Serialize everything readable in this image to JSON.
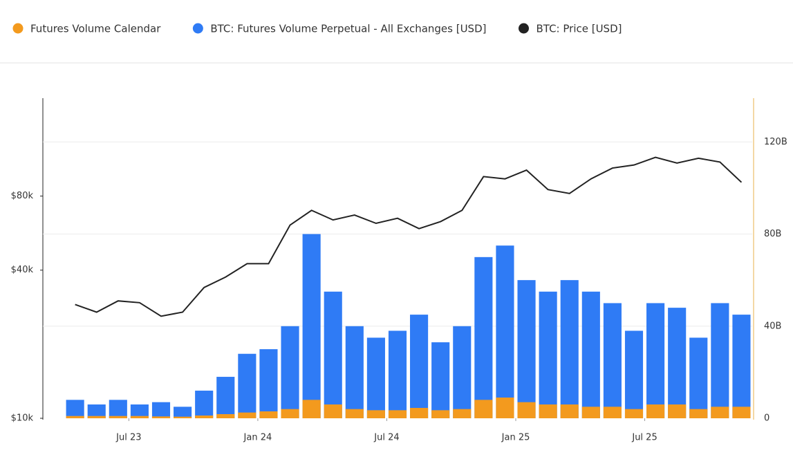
{
  "chart_data": {
    "type": "bar-line",
    "x": [
      "2023-04",
      "2023-05",
      "2023-06",
      "2023-07",
      "2023-08",
      "2023-09",
      "2023-10",
      "2023-11",
      "2023-12",
      "2024-01",
      "2024-02",
      "2024-03",
      "2024-04",
      "2024-05",
      "2024-06",
      "2024-07",
      "2024-08",
      "2024-09",
      "2024-10",
      "2024-11",
      "2024-12",
      "2025-01",
      "2025-02",
      "2025-03",
      "2025-04",
      "2025-05",
      "2025-06",
      "2025-07",
      "2025-08",
      "2025-09",
      "2025-10",
      "2025-11"
    ],
    "xlim": [
      "2023-03",
      "2025-12"
    ],
    "xticks": [
      {
        "value": "2023-07",
        "label": "Jul 23"
      },
      {
        "value": "2024-01",
        "label": "Jan 24"
      },
      {
        "value": "2024-07",
        "label": "Jul 24"
      },
      {
        "value": "2025-01",
        "label": "Jan 25"
      },
      {
        "value": "2025-07",
        "label": "Jul 25"
      }
    ],
    "ylim": [
      10000,
      200000
    ],
    "log_y": true,
    "yticks": [
      {
        "value": 10000,
        "label": "$10k"
      },
      {
        "value": 40000,
        "label": "$40k"
      },
      {
        "value": 80000,
        "label": "$80k"
      }
    ],
    "y2lim": [
      0,
      139000000000
    ],
    "y2ticks": [
      0,
      {
        "value": 40000000000,
        "label": "40B"
      },
      {
        "value": 80000000000,
        "label": "80B"
      },
      {
        "value": 120000000000,
        "label": "120B"
      }
    ],
    "grid": true,
    "series": [
      {
        "name": "Futures Volume Calendar",
        "color": "#f39a1e",
        "axis": "y2",
        "kind": "bar",
        "values": [
          1000000000,
          1000000000,
          1000000000,
          1000000000,
          800000000,
          700000000,
          1200000000,
          1800000000,
          2500000000,
          3000000000,
          4000000000,
          8000000000,
          6000000000,
          4000000000,
          3500000000,
          3500000000,
          4500000000,
          3500000000,
          4000000000,
          8000000000,
          9000000000,
          7000000000,
          6000000000,
          6000000000,
          5000000000,
          5000000000,
          4000000000,
          6000000000,
          6000000000,
          4000000000,
          5000000000,
          5000000000
        ]
      },
      {
        "name": "BTC: Futures Volume Perpetual - All Exchanges [USD]",
        "color": "#2f7bf5",
        "axis": "y2",
        "kind": "bar",
        "values": [
          8000000000,
          6000000000,
          8000000000,
          6000000000,
          7000000000,
          5000000000,
          12000000000,
          18000000000,
          28000000000,
          30000000000,
          40000000000,
          80000000000,
          55000000000,
          40000000000,
          35000000000,
          38000000000,
          45000000000,
          33000000000,
          40000000000,
          70000000000,
          75000000000,
          60000000000,
          55000000000,
          60000000000,
          55000000000,
          50000000000,
          38000000000,
          50000000000,
          48000000000,
          35000000000,
          50000000000,
          45000000000
        ]
      },
      {
        "name": "BTC: Price [USD]",
        "color": "#222222",
        "kind": "line",
        "values": [
          29000,
          27000,
          30000,
          29500,
          26000,
          27000,
          34000,
          37500,
          42500,
          42500,
          61000,
          70000,
          64000,
          67000,
          62000,
          65000,
          59000,
          63000,
          70000,
          96000,
          94000,
          102000,
          85000,
          82000,
          94000,
          104000,
          107000,
          115000,
          109000,
          114000,
          110000,
          91000
        ]
      }
    ]
  }
}
